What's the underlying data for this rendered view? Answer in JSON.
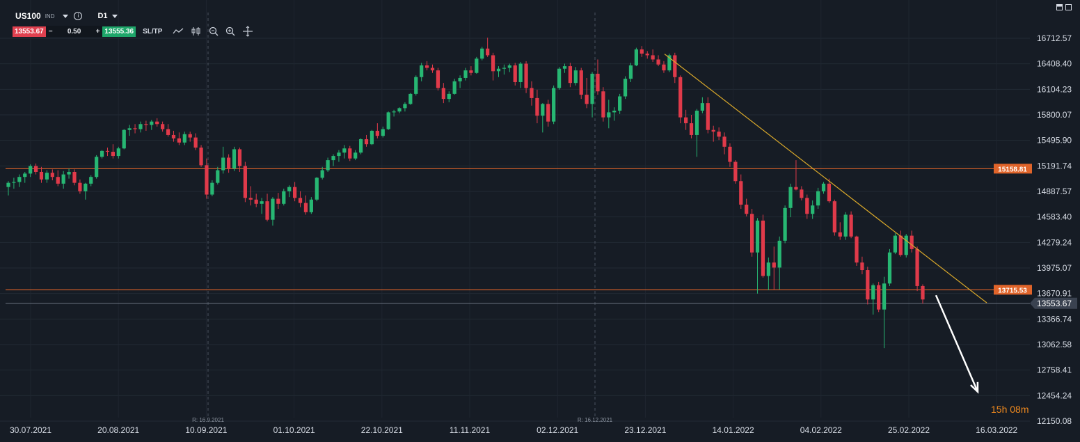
{
  "toolbar": {
    "symbol": "US100",
    "market_type": "IND",
    "timeframe": "D1",
    "sell_price": "13553.67",
    "minus": "−",
    "volume": "0.50",
    "plus": "+",
    "buy_price": "13555.36",
    "sltp_label": "SL/TP",
    "tool_icons": [
      "line-chart-icon",
      "candle-type-icon",
      "zoom-out-icon",
      "zoom-in-icon",
      "crosshair-icon"
    ]
  },
  "colors": {
    "background": "#161c25",
    "bull": "#27b773",
    "bear": "#e03a4a",
    "level_line": "#e0642a",
    "trendline": "#d9a82a",
    "price_line": "#6b7380",
    "arrow": "#ffffff",
    "countdown": "#f08a1e"
  },
  "countdown": {
    "hours": "15",
    "h": "h",
    "minutes": "08",
    "m": "m"
  },
  "chart_data": {
    "type": "candlestick",
    "y_axis_labels": [
      "16712.57",
      "16408.40",
      "16104.23",
      "15800.07",
      "15495.90",
      "15191.74",
      "14887.57",
      "14583.40",
      "14279.24",
      "13975.07",
      "13670.91",
      "13366.74",
      "13062.58",
      "12758.41",
      "12454.24",
      "12150.08"
    ],
    "x_axis_labels": [
      "30.07.2021",
      "20.08.2021",
      "10.09.2021",
      "01.10.2021",
      "22.10.2021",
      "11.11.2021",
      "02.12.2021",
      "23.12.2021",
      "14.01.2022",
      "04.02.2022",
      "25.02.2022",
      "16.03.2022"
    ],
    "ylim": [
      12150.08,
      16712.57
    ],
    "rollover_markers": [
      "R: 16.9.2021",
      "R: 16.12.2021"
    ],
    "levels": [
      {
        "label": "15158.81",
        "value": 15158.81
      },
      {
        "label": "13715.53",
        "value": 13715.53
      }
    ],
    "current_price": {
      "label": "13553.67",
      "value": 13553.67
    },
    "trendline": {
      "from_date": "28.12.2021",
      "from_value": 16525,
      "to_date": "14.03.2022",
      "to_value": 13560
    },
    "projection_arrow": {
      "from_value": 13650,
      "to_value": 12500,
      "direction": "down"
    },
    "candles_ohlc_approx": [
      [
        14940,
        15010,
        14840,
        14990
      ],
      [
        14990,
        15050,
        14920,
        15000
      ],
      [
        15000,
        15090,
        14940,
        15060
      ],
      [
        15060,
        15120,
        14990,
        15100
      ],
      [
        15100,
        15210,
        15060,
        15190
      ],
      [
        15190,
        15220,
        15090,
        15120
      ],
      [
        15120,
        15180,
        14990,
        15030
      ],
      [
        15030,
        15140,
        14990,
        15110
      ],
      [
        15110,
        15150,
        15020,
        15060
      ],
      [
        15060,
        15140,
        14950,
        14980
      ],
      [
        14980,
        15130,
        14920,
        15090
      ],
      [
        15090,
        15160,
        15040,
        15120
      ],
      [
        15120,
        15150,
        14960,
        14990
      ],
      [
        14990,
        15030,
        14860,
        14890
      ],
      [
        14890,
        14990,
        14790,
        14980
      ],
      [
        14980,
        15080,
        14950,
        15060
      ],
      [
        15060,
        15320,
        15040,
        15300
      ],
      [
        15300,
        15380,
        15280,
        15370
      ],
      [
        15370,
        15410,
        15310,
        15360
      ],
      [
        15360,
        15450,
        15280,
        15310
      ],
      [
        15310,
        15420,
        15280,
        15400
      ],
      [
        15400,
        15630,
        15390,
        15620
      ],
      [
        15620,
        15680,
        15550,
        15640
      ],
      [
        15640,
        15690,
        15580,
        15630
      ],
      [
        15630,
        15720,
        15590,
        15690
      ],
      [
        15690,
        15730,
        15610,
        15680
      ],
      [
        15680,
        15740,
        15620,
        15720
      ],
      [
        15720,
        15760,
        15660,
        15690
      ],
      [
        15690,
        15720,
        15600,
        15630
      ],
      [
        15630,
        15690,
        15540,
        15560
      ],
      [
        15560,
        15610,
        15480,
        15520
      ],
      [
        15520,
        15590,
        15440,
        15470
      ],
      [
        15470,
        15600,
        15440,
        15570
      ],
      [
        15570,
        15600,
        15480,
        15530
      ],
      [
        15530,
        15580,
        15380,
        15410
      ],
      [
        15410,
        15440,
        15180,
        15200
      ],
      [
        15200,
        15280,
        14800,
        14850
      ],
      [
        14850,
        15020,
        14830,
        14990
      ],
      [
        14990,
        15180,
        14970,
        15140
      ],
      [
        15140,
        15420,
        15100,
        15290
      ],
      [
        15290,
        15330,
        15110,
        15160
      ],
      [
        15160,
        15420,
        15130,
        15390
      ],
      [
        15390,
        15410,
        15120,
        15190
      ],
      [
        15190,
        15240,
        14760,
        14810
      ],
      [
        14810,
        14950,
        14720,
        14790
      ],
      [
        14790,
        14860,
        14700,
        14740
      ],
      [
        14740,
        14810,
        14620,
        14770
      ],
      [
        14770,
        14860,
        14530,
        14550
      ],
      [
        14550,
        14820,
        14480,
        14800
      ],
      [
        14800,
        14870,
        14680,
        14740
      ],
      [
        14740,
        14920,
        14720,
        14890
      ],
      [
        14890,
        14960,
        14820,
        14940
      ],
      [
        14940,
        15000,
        14770,
        14810
      ],
      [
        14810,
        14890,
        14700,
        14750
      ],
      [
        14750,
        14840,
        14610,
        14640
      ],
      [
        14640,
        14820,
        14620,
        14790
      ],
      [
        14790,
        15060,
        14770,
        15050
      ],
      [
        15050,
        15180,
        15030,
        15140
      ],
      [
        15140,
        15290,
        15120,
        15260
      ],
      [
        15260,
        15330,
        15190,
        15310
      ],
      [
        15310,
        15380,
        15240,
        15350
      ],
      [
        15350,
        15440,
        15280,
        15400
      ],
      [
        15400,
        15430,
        15250,
        15280
      ],
      [
        15280,
        15380,
        15260,
        15350
      ],
      [
        15350,
        15520,
        15330,
        15510
      ],
      [
        15510,
        15560,
        15420,
        15450
      ],
      [
        15450,
        15620,
        15440,
        15610
      ],
      [
        15610,
        15700,
        15520,
        15550
      ],
      [
        15550,
        15660,
        15530,
        15630
      ],
      [
        15630,
        15840,
        15620,
        15830
      ],
      [
        15830,
        15860,
        15780,
        15840
      ],
      [
        15840,
        15890,
        15820,
        15880
      ],
      [
        15880,
        15950,
        15840,
        15930
      ],
      [
        15930,
        16060,
        15920,
        16050
      ],
      [
        16050,
        16270,
        16030,
        16250
      ],
      [
        16250,
        16420,
        16200,
        16390
      ],
      [
        16390,
        16440,
        16330,
        16360
      ],
      [
        16360,
        16400,
        16300,
        16330
      ],
      [
        16330,
        16360,
        16090,
        16120
      ],
      [
        16120,
        16180,
        15940,
        15990
      ],
      [
        15990,
        16080,
        15950,
        16050
      ],
      [
        16050,
        16230,
        16040,
        16200
      ],
      [
        16200,
        16270,
        16120,
        16240
      ],
      [
        16240,
        16360,
        16210,
        16330
      ],
      [
        16330,
        16380,
        16270,
        16300
      ],
      [
        16300,
        16490,
        16290,
        16470
      ],
      [
        16470,
        16610,
        16450,
        16590
      ],
      [
        16590,
        16720,
        16490,
        16510
      ],
      [
        16510,
        16540,
        16210,
        16320
      ],
      [
        16320,
        16380,
        16250,
        16350
      ],
      [
        16350,
        16400,
        16280,
        16360
      ],
      [
        16360,
        16410,
        16310,
        16390
      ],
      [
        16390,
        16420,
        16150,
        16190
      ],
      [
        16190,
        16430,
        16120,
        16410
      ],
      [
        16410,
        16440,
        16060,
        16120
      ],
      [
        16120,
        16200,
        15910,
        16000
      ],
      [
        16000,
        16100,
        15700,
        15790
      ],
      [
        15790,
        15940,
        15590,
        15930
      ],
      [
        15930,
        15980,
        15660,
        15720
      ],
      [
        15720,
        16150,
        15690,
        16120
      ],
      [
        16120,
        16370,
        16100,
        16350
      ],
      [
        16350,
        16410,
        16300,
        16380
      ],
      [
        16380,
        16420,
        16130,
        16180
      ],
      [
        16180,
        16370,
        16150,
        16330
      ],
      [
        16330,
        16360,
        15990,
        16040
      ],
      [
        16040,
        16240,
        15880,
        15930
      ],
      [
        15930,
        16310,
        15770,
        16290
      ],
      [
        16290,
        16460,
        16040,
        16080
      ],
      [
        16080,
        16130,
        15720,
        15770
      ],
      [
        15770,
        15980,
        15640,
        15830
      ],
      [
        15830,
        15890,
        15730,
        15850
      ],
      [
        15850,
        16050,
        15810,
        16020
      ],
      [
        16020,
        16260,
        15990,
        16230
      ],
      [
        16230,
        16420,
        16190,
        16390
      ],
      [
        16390,
        16600,
        16380,
        16580
      ],
      [
        16580,
        16620,
        16490,
        16530
      ],
      [
        16530,
        16560,
        16470,
        16510
      ],
      [
        16510,
        16580,
        16430,
        16460
      ],
      [
        16460,
        16510,
        16380,
        16400
      ],
      [
        16400,
        16440,
        16300,
        16330
      ],
      [
        16330,
        16530,
        16310,
        16510
      ],
      [
        16510,
        16540,
        16180,
        16250
      ],
      [
        16250,
        16270,
        15700,
        15770
      ],
      [
        15770,
        15860,
        15620,
        15700
      ],
      [
        15700,
        15800,
        15520,
        15560
      ],
      [
        15560,
        15870,
        15300,
        15850
      ],
      [
        15850,
        16010,
        15820,
        15940
      ],
      [
        15940,
        16010,
        15580,
        15620
      ],
      [
        15620,
        15670,
        15480,
        15600
      ],
      [
        15600,
        15650,
        15500,
        15540
      ],
      [
        15540,
        15590,
        15330,
        15420
      ],
      [
        15420,
        15460,
        15180,
        15240
      ],
      [
        15240,
        15260,
        14980,
        15010
      ],
      [
        15010,
        15090,
        14680,
        14730
      ],
      [
        14730,
        14800,
        14590,
        14620
      ],
      [
        14620,
        14680,
        14110,
        14160
      ],
      [
        14160,
        14570,
        13670,
        14540
      ],
      [
        14540,
        14610,
        13860,
        13880
      ],
      [
        13880,
        14100,
        13710,
        14040
      ],
      [
        14040,
        14230,
        13720,
        13980
      ],
      [
        13980,
        14350,
        13720,
        14300
      ],
      [
        14300,
        14720,
        14270,
        14690
      ],
      [
        14690,
        14980,
        14580,
        14940
      ],
      [
        14940,
        15260,
        14900,
        14910
      ],
      [
        14910,
        14950,
        14780,
        14810
      ],
      [
        14810,
        14850,
        14560,
        14620
      ],
      [
        14620,
        14780,
        14560,
        14720
      ],
      [
        14720,
        14930,
        14680,
        14890
      ],
      [
        14890,
        15000,
        14860,
        14980
      ],
      [
        14980,
        15040,
        14750,
        14770
      ],
      [
        14770,
        14790,
        14360,
        14400
      ],
      [
        14400,
        14520,
        14310,
        14350
      ],
      [
        14350,
        14640,
        14310,
        14610
      ],
      [
        14610,
        14650,
        14330,
        14350
      ],
      [
        14350,
        14360,
        14000,
        14040
      ],
      [
        14040,
        14110,
        13900,
        13950
      ],
      [
        13950,
        13990,
        13540,
        13600
      ],
      [
        13600,
        13790,
        13420,
        13770
      ],
      [
        13770,
        13810,
        13450,
        13480
      ],
      [
        13480,
        13870,
        13020,
        13790
      ],
      [
        13790,
        14200,
        13760,
        14160
      ],
      [
        14160,
        14390,
        14140,
        14360
      ],
      [
        14360,
        14420,
        14110,
        14130
      ],
      [
        14130,
        14380,
        14100,
        14360
      ],
      [
        14360,
        14420,
        14160,
        14200
      ],
      [
        14200,
        14230,
        13700,
        13760
      ],
      [
        13760,
        13780,
        13550,
        13600
      ]
    ]
  }
}
